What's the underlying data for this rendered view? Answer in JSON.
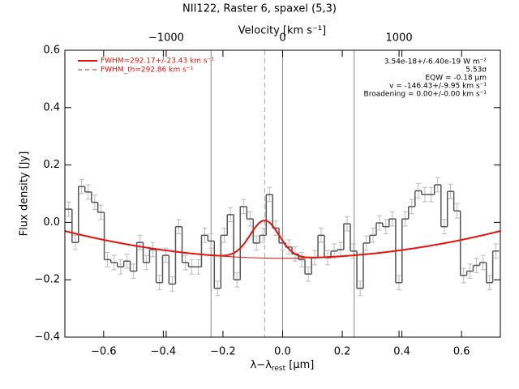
{
  "chart_data": {
    "type": "step",
    "title": "NII122, Raster 6, spaxel (5,3)",
    "xlabel": [
      "λ−λ",
      "rest",
      " [μm]"
    ],
    "ylabel": "Flux density [Jy]",
    "x2label": "Velocity [km s⁻¹]",
    "xlim": [
      -0.73,
      0.73
    ],
    "xticks": [
      {
        "value": -0.6,
        "label": "−0.6"
      },
      {
        "value": -0.4,
        "label": "−0.4"
      },
      {
        "value": -0.2,
        "label": "−0.2"
      },
      {
        "value": 0,
        "label": "0.0"
      },
      0.2,
      0.4,
      0.6
    ],
    "ylim": [
      -0.4,
      0.6
    ],
    "yticks": [
      {
        "value": -0.4,
        "label": "−0.4"
      },
      {
        "value": -0.2,
        "label": "−0.2"
      },
      {
        "value": 0,
        "label": "0.0"
      },
      0.2,
      0.4,
      0.6
    ],
    "x2lim": [
      -1870,
      1870
    ],
    "x2ticks": [
      {
        "value": -1000,
        "label": "−1000"
      },
      0,
      1000
    ],
    "x": [
      -0.717,
      -0.695,
      -0.674,
      -0.652,
      -0.63,
      -0.609,
      -0.587,
      -0.565,
      -0.543,
      -0.522,
      -0.5,
      -0.478,
      -0.457,
      -0.435,
      -0.413,
      -0.392,
      -0.37,
      -0.348,
      -0.326,
      -0.305,
      -0.283,
      -0.261,
      -0.24,
      -0.218,
      -0.196,
      -0.175,
      -0.153,
      -0.131,
      -0.109,
      -0.088,
      -0.066,
      -0.044,
      -0.023,
      -0.001,
      0.021,
      0.042,
      0.064,
      0.086,
      0.108,
      0.129,
      0.151,
      0.173,
      0.194,
      0.216,
      0.238,
      0.26,
      0.281,
      0.303,
      0.325,
      0.346,
      0.368,
      0.39,
      0.411,
      0.433,
      0.455,
      0.477,
      0.498,
      0.52,
      0.542,
      0.563,
      0.585,
      0.607,
      0.628,
      0.65,
      0.672,
      0.694,
      0.715
    ],
    "values": [
      0.046,
      -0.07,
      0.125,
      0.106,
      0.07,
      0.035,
      -0.13,
      -0.14,
      -0.155,
      -0.135,
      -0.17,
      -0.07,
      -0.14,
      -0.095,
      -0.21,
      -0.115,
      -0.215,
      -0.015,
      -0.14,
      -0.155,
      -0.155,
      -0.045,
      -0.065,
      -0.23,
      -0.045,
      0.027,
      -0.2,
      0.055,
      0.012,
      -0.072,
      -0.045,
      0.097,
      -0.02,
      -0.072,
      -0.086,
      -0.11,
      -0.13,
      -0.18,
      -0.123,
      -0.045,
      -0.123,
      -0.1,
      -0.095,
      -0.005,
      -0.1,
      -0.23,
      -0.072,
      -0.045,
      -0.002,
      -0.015,
      0.012,
      -0.21,
      0.012,
      0.055,
      0.11,
      0.097,
      0.097,
      0.131,
      -0.015,
      0.108,
      0.04,
      -0.185,
      -0.17,
      -0.15,
      -0.14,
      -0.21,
      -0.1
    ],
    "error": 0.025,
    "color": "#555555",
    "error_color": "#bbbbbb",
    "fit": {
      "color": "#e8120c",
      "center": -0.06,
      "amplitude": 0.131,
      "sigma": 0.0486,
      "baseline": [
        -0.125,
        0,
        0.178
      ],
      "continuum_range": [
        -0.24,
        0.08
      ]
    },
    "vlines": [
      -0.24,
      0,
      0.24
    ],
    "line_center": -0.06,
    "legend": [
      "FWHM=292.17+/-23.43 km s⁻¹",
      "FWHM_th=292.86 km s⁻¹"
    ],
    "annotations": [
      "3.54e-18+/-6.40e-19 W m⁻²",
      "5.53σ",
      "EQW = -0.18 μm",
      "v = -146.43+/-9.95 km s⁻¹",
      "Broadening = 0.00+/-0.00 km s⁻¹"
    ]
  }
}
